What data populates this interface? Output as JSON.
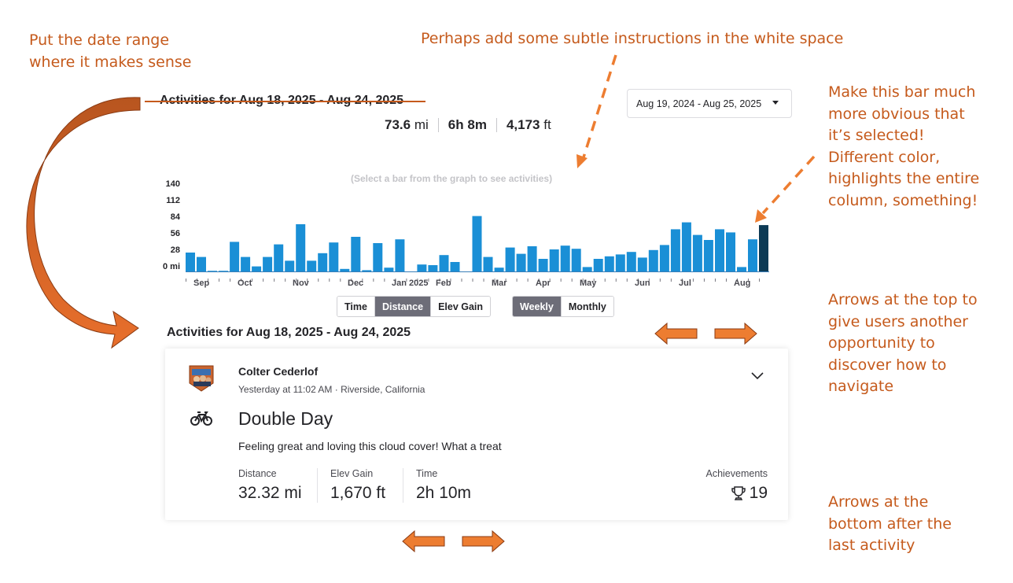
{
  "annotations": {
    "date_range_note": "Put the date range\nwhere it makes sense",
    "instructions_note": "Perhaps add some subtle instructions in the white space",
    "selected_bar_note": "Make this bar much\nmore obvious that\nit’s selected!\nDifferent color,\nhighlights the entire\ncolumn, something!",
    "top_arrows_note": "Arrows at the top to\ngive users another\nopportunity to\ndiscover how to\nnavigate",
    "bottom_arrows_note": "Arrows at the\nbottom after the\nlast activity"
  },
  "header": {
    "title_struck": "Activities for Aug 18, 2025 - Aug 24, 2025",
    "date_range_select": "Aug 19, 2024 - Aug 25, 2025"
  },
  "summary": {
    "distance_value": "73.6",
    "distance_unit": "mi",
    "time_h": "6h",
    "time_m": "8m",
    "elev_value": "4,173",
    "elev_unit": "ft"
  },
  "chart_hint": "(Select a bar from the graph to see activities)",
  "chart_data": {
    "type": "bar",
    "y_ticks": [
      "140",
      "112",
      "84",
      "56",
      "28",
      "0 mi"
    ],
    "ylim": [
      0,
      140
    ],
    "x_labels": [
      {
        "label": "Sep",
        "week": 1
      },
      {
        "label": "Oct",
        "week": 5
      },
      {
        "label": "Nov",
        "week": 10
      },
      {
        "label": "Dec",
        "week": 15
      },
      {
        "label": "Jan 2025",
        "week": 19
      },
      {
        "label": "Feb",
        "week": 23
      },
      {
        "label": "Mar",
        "week": 28
      },
      {
        "label": "Apr",
        "week": 32
      },
      {
        "label": "May",
        "week": 36
      },
      {
        "label": "Jun",
        "week": 41
      },
      {
        "label": "Jul",
        "week": 45
      },
      {
        "label": "Aug",
        "week": 50
      }
    ],
    "values": [
      30,
      23,
      1,
      1,
      47,
      23,
      8,
      23,
      43,
      17,
      75,
      17,
      29,
      46,
      4,
      55,
      2,
      45,
      6,
      51,
      0,
      11,
      10,
      26,
      15,
      0,
      88,
      23,
      6,
      38,
      28,
      40,
      20,
      35,
      41,
      36,
      7,
      20,
      24,
      27,
      31,
      22,
      34,
      42,
      67,
      78,
      58,
      50,
      67,
      62,
      7,
      51,
      73.6
    ],
    "selected_index": 52,
    "colors": {
      "bar": "#1a8fd6",
      "bar_dark": "#0b6aa8",
      "selected": "#0c3a55",
      "axis": "#3a7fb8"
    }
  },
  "toggles": {
    "metric": [
      {
        "label": "Time",
        "active": false
      },
      {
        "label": "Distance",
        "active": true
      },
      {
        "label": "Elev Gain",
        "active": false
      }
    ],
    "period": [
      {
        "label": "Weekly",
        "active": true
      },
      {
        "label": "Monthly",
        "active": false
      }
    ]
  },
  "activities_title": "Activities for Aug 18, 2025 - Aug 24, 2025",
  "activity": {
    "athlete": "Colter Cederlof",
    "meta": "Yesterday at 11:02 AM · Riverside, California",
    "title": "Double Day",
    "description": "Feeling great and loving this cloud cover! What a treat",
    "stats": [
      {
        "label": "Distance",
        "value": "32.32 mi"
      },
      {
        "label": "Elev Gain",
        "value": "1,670 ft"
      },
      {
        "label": "Time",
        "value": "2h 10m"
      }
    ],
    "achievements_label": "Achievements",
    "achievements_count": "19"
  },
  "icons": {
    "avatar": "athlete-avatar",
    "activity_type": "bike-icon",
    "expand": "chevron-down-icon",
    "achievements": "trophy-icon",
    "prev": "arrow-left-icon",
    "next": "arrow-right-icon"
  },
  "accent_color": "#c55a1c",
  "arrow_fill": "#ed7d31"
}
